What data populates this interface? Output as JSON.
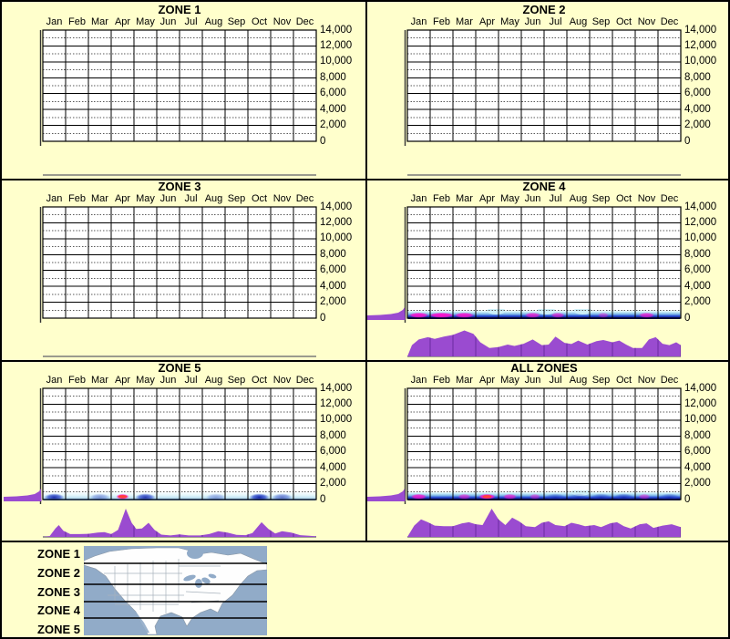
{
  "colors": {
    "background": "#FFFFCC",
    "panel_border": "#000000",
    "plot_background": "#FFFFFF",
    "grid_major": "#000000",
    "grid_minor": "#5A5A5A",
    "axis_line": "#333333",
    "text": "#000000",
    "area_purple": "#9A4BD0",
    "area_grid_line": "#6E2FA4",
    "baseline_grey": "#7A7A7A",
    "band_cyan": "#C8EEF8",
    "band_blue": "#2E55D8",
    "band_navy": "#0A1478",
    "band_hot_magenta": "#FF10CC",
    "band_hot_red_core": "#FF4430",
    "map_ocean": "#91ABC8",
    "map_land": "#FEFEFE",
    "map_state_line": "#A8B2BC",
    "map_zone_line": "#000000"
  },
  "legend": {
    "items": [
      "ZONE 1",
      "ZONE 2",
      "ZONE 3",
      "ZONE 4",
      "ZONE 5"
    ],
    "map_description": "North America map divided by 4 horizontal black lines into 5 latitude zones"
  },
  "chart_data": {
    "shared_axes": {
      "x_categories": [
        "Jan",
        "Feb",
        "Mar",
        "Apr",
        "May",
        "Jun",
        "Jul",
        "Aug",
        "Sep",
        "Oct",
        "Nov",
        "Dec"
      ],
      "ylim": [
        0,
        14000
      ],
      "y_tick_step": 2000,
      "y_tick_labels": [
        "14,000",
        "12,000",
        "10,000",
        "8,000",
        "6,000",
        "4,000",
        "2,000",
        "0"
      ],
      "minor_gridlines_every": 1000,
      "grid": "on"
    },
    "charts": [
      {
        "title": "ZONE 1",
        "type": "area",
        "has_data": false
      },
      {
        "title": "ZONE 2",
        "type": "area",
        "has_data": false
      },
      {
        "title": "ZONE 3",
        "type": "area",
        "has_data": false
      },
      {
        "title": "ZONE 4",
        "type": "area",
        "has_data": true,
        "left_spill": true,
        "density_band": {
          "y_extent": [
            0,
            1000
          ],
          "base": "dark",
          "hot_blobs": [
            {
              "month_center": 0.5,
              "strength": 0.95,
              "width": 1.0
            },
            {
              "month_center": 1.5,
              "strength": 1.0,
              "width": 1.3
            },
            {
              "month_center": 2.5,
              "strength": 0.9,
              "width": 1.0
            },
            {
              "month_center": 5.5,
              "strength": 0.75,
              "width": 0.8
            },
            {
              "month_center": 6.6,
              "strength": 0.65,
              "width": 0.7
            },
            {
              "month_center": 8.6,
              "strength": 0.45,
              "width": 0.55
            },
            {
              "month_center": 10.5,
              "strength": 0.75,
              "width": 0.8
            }
          ],
          "cold_blobs": [],
          "cyan_bumps": [
            3.9,
            6.1,
            7.7
          ]
        },
        "area_profile": {
          "unit": "relative intensity 0-1 (no labeled axis)",
          "x_unit": "months, 0 = start of Jan, 12 = end of Dec",
          "points": [
            [
              0,
              0
            ],
            [
              0.2,
              0.4
            ],
            [
              0.5,
              0.6
            ],
            [
              0.9,
              0.68
            ],
            [
              1.2,
              0.62
            ],
            [
              1.6,
              0.7
            ],
            [
              2.0,
              0.76
            ],
            [
              2.5,
              0.92
            ],
            [
              2.9,
              0.8
            ],
            [
              3.2,
              0.5
            ],
            [
              3.6,
              0.3
            ],
            [
              4.0,
              0.33
            ],
            [
              4.4,
              0.42
            ],
            [
              4.7,
              0.37
            ],
            [
              5.1,
              0.45
            ],
            [
              5.5,
              0.6
            ],
            [
              5.9,
              0.4
            ],
            [
              6.2,
              0.42
            ],
            [
              6.5,
              0.7
            ],
            [
              6.9,
              0.48
            ],
            [
              7.2,
              0.44
            ],
            [
              7.5,
              0.56
            ],
            [
              7.9,
              0.42
            ],
            [
              8.3,
              0.54
            ],
            [
              8.6,
              0.58
            ],
            [
              9.0,
              0.5
            ],
            [
              9.3,
              0.56
            ],
            [
              9.6,
              0.42
            ],
            [
              9.9,
              0.3
            ],
            [
              10.3,
              0.3
            ],
            [
              10.6,
              0.6
            ],
            [
              10.9,
              0.68
            ],
            [
              11.2,
              0.45
            ],
            [
              11.5,
              0.4
            ],
            [
              11.8,
              0.5
            ],
            [
              12,
              0.4
            ]
          ]
        }
      },
      {
        "title": "ZONE 5",
        "type": "area",
        "has_data": true,
        "left_spill": true,
        "density_band": {
          "y_extent": [
            0,
            1000
          ],
          "base": "light",
          "hot_blobs": [
            {
              "month_center": 3.5,
              "strength": 1.0,
              "width": 0.65,
              "red_core": true
            }
          ],
          "cold_blobs": [
            {
              "month_center": 0.5,
              "strength": 0.9
            },
            {
              "month_center": 2.5,
              "strength": 0.4
            },
            {
              "month_center": 4.5,
              "strength": 0.85
            },
            {
              "month_center": 7.6,
              "strength": 0.35
            },
            {
              "month_center": 9.5,
              "strength": 0.95
            },
            {
              "month_center": 10.5,
              "strength": 0.55
            }
          ],
          "cyan_bumps": []
        },
        "area_profile": {
          "unit": "relative intensity 0-1 (no labeled axis)",
          "x_unit": "months, 0 = start of Jan, 12 = end of Dec",
          "points": [
            [
              0,
              0
            ],
            [
              0.3,
              0.03
            ],
            [
              0.55,
              0.3
            ],
            [
              0.7,
              0.42
            ],
            [
              0.9,
              0.22
            ],
            [
              1.2,
              0.1
            ],
            [
              1.6,
              0.1
            ],
            [
              2.0,
              0.11
            ],
            [
              2.4,
              0.15
            ],
            [
              2.7,
              0.17
            ],
            [
              3.0,
              0.1
            ],
            [
              3.3,
              0.25
            ],
            [
              3.64,
              1.0
            ],
            [
              3.9,
              0.5
            ],
            [
              4.1,
              0.28
            ],
            [
              4.35,
              0.3
            ],
            [
              4.64,
              0.5
            ],
            [
              4.9,
              0.25
            ],
            [
              5.2,
              0.08
            ],
            [
              5.6,
              0.05
            ],
            [
              6.0,
              0.09
            ],
            [
              6.4,
              0.05
            ],
            [
              6.9,
              0.05
            ],
            [
              7.3,
              0.1
            ],
            [
              7.7,
              0.2
            ],
            [
              8.1,
              0.15
            ],
            [
              8.5,
              0.07
            ],
            [
              8.9,
              0.06
            ],
            [
              9.2,
              0.14
            ],
            [
              9.6,
              0.52
            ],
            [
              9.9,
              0.28
            ],
            [
              10.2,
              0.12
            ],
            [
              10.5,
              0.2
            ],
            [
              10.9,
              0.15
            ],
            [
              11.3,
              0.06
            ],
            [
              11.7,
              0.04
            ],
            [
              12,
              0.02
            ]
          ]
        }
      },
      {
        "title": "ALL ZONES",
        "type": "area",
        "has_data": true,
        "left_spill": true,
        "density_band": {
          "y_extent": [
            0,
            1000
          ],
          "base": "dark",
          "hot_blobs": [
            {
              "month_center": 0.5,
              "strength": 0.85,
              "width": 0.8
            },
            {
              "month_center": 2.5,
              "strength": 0.6,
              "width": 0.65
            },
            {
              "month_center": 3.5,
              "strength": 1.0,
              "width": 0.85,
              "red_core": true
            },
            {
              "month_center": 4.5,
              "strength": 0.7,
              "width": 0.7
            },
            {
              "month_center": 5.6,
              "strength": 0.5,
              "width": 0.55
            },
            {
              "month_center": 10.4,
              "strength": 0.5,
              "width": 0.6
            }
          ],
          "cold_blobs": [
            {
              "month_center": 6.5,
              "strength": 0.5
            },
            {
              "month_center": 7.5,
              "strength": 0.4
            },
            {
              "month_center": 8.5,
              "strength": 0.5
            },
            {
              "month_center": 9.5,
              "strength": 0.6
            },
            {
              "month_center": 11.5,
              "strength": 0.5
            }
          ],
          "cyan_bumps": [
            7.6
          ]
        },
        "area_profile": {
          "unit": "relative intensity 0-1 (no labeled axis)",
          "x_unit": "months, 0 = start of Jan, 12 = end of Dec",
          "points": [
            [
              0,
              0
            ],
            [
              0.3,
              0.4
            ],
            [
              0.6,
              0.62
            ],
            [
              0.9,
              0.52
            ],
            [
              1.2,
              0.4
            ],
            [
              1.6,
              0.38
            ],
            [
              2.0,
              0.38
            ],
            [
              2.4,
              0.48
            ],
            [
              2.7,
              0.52
            ],
            [
              3.0,
              0.45
            ],
            [
              3.3,
              0.42
            ],
            [
              3.7,
              1.0
            ],
            [
              4.0,
              0.62
            ],
            [
              4.3,
              0.42
            ],
            [
              4.6,
              0.68
            ],
            [
              4.9,
              0.55
            ],
            [
              5.2,
              0.38
            ],
            [
              5.6,
              0.35
            ],
            [
              5.9,
              0.5
            ],
            [
              6.2,
              0.55
            ],
            [
              6.5,
              0.42
            ],
            [
              6.9,
              0.38
            ],
            [
              7.2,
              0.5
            ],
            [
              7.5,
              0.45
            ],
            [
              7.8,
              0.38
            ],
            [
              8.2,
              0.42
            ],
            [
              8.5,
              0.35
            ],
            [
              8.9,
              0.48
            ],
            [
              9.2,
              0.52
            ],
            [
              9.5,
              0.38
            ],
            [
              9.8,
              0.3
            ],
            [
              10.2,
              0.45
            ],
            [
              10.5,
              0.48
            ],
            [
              10.8,
              0.32
            ],
            [
              11.2,
              0.4
            ],
            [
              11.6,
              0.45
            ],
            [
              12,
              0.35
            ]
          ]
        }
      }
    ]
  }
}
